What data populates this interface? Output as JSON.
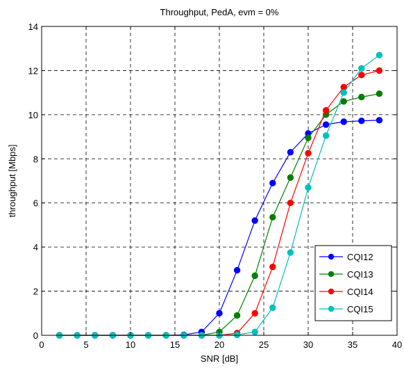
{
  "chart_data": {
    "type": "line",
    "title": "Throughput, PedA, evm = 0%",
    "xlabel": "SNR [dB]",
    "ylabel": "throughput [Mbps]",
    "xlim": [
      0,
      40
    ],
    "ylim": [
      0,
      14
    ],
    "xticks": [
      0,
      5,
      10,
      15,
      20,
      25,
      30,
      35,
      40
    ],
    "yticks": [
      0,
      2,
      4,
      6,
      8,
      10,
      12,
      14
    ],
    "grid": true,
    "legend_position": "bottom-right",
    "x": [
      2,
      4,
      6,
      8,
      10,
      12,
      14,
      16,
      18,
      20,
      22,
      24,
      26,
      28,
      30,
      32,
      34,
      36,
      38
    ],
    "series": [
      {
        "name": "CQI12",
        "color": "#0000ff",
        "values": [
          0,
          0,
          0,
          0,
          0,
          0,
          0,
          0.02,
          0.15,
          1.0,
          2.95,
          5.2,
          6.9,
          8.3,
          9.15,
          9.55,
          9.68,
          9.72,
          9.75
        ]
      },
      {
        "name": "CQI13",
        "color": "#008000",
        "values": [
          0,
          0,
          0,
          0,
          0,
          0,
          0,
          0,
          0,
          0.15,
          0.9,
          2.7,
          5.35,
          7.15,
          8.95,
          10.0,
          10.6,
          10.8,
          10.95
        ]
      },
      {
        "name": "CQI14",
        "color": "#ff0000",
        "values": [
          0,
          0,
          0,
          0,
          0,
          0,
          0,
          0,
          0,
          0,
          0.1,
          1.0,
          3.1,
          6.0,
          8.25,
          10.2,
          11.25,
          11.8,
          12.0
        ]
      },
      {
        "name": "CQI15",
        "color": "#00bfbf",
        "values": [
          0,
          0,
          0,
          0,
          0,
          0,
          0,
          0,
          0,
          0,
          0.02,
          0.15,
          1.25,
          3.75,
          6.7,
          9.05,
          11.0,
          12.1,
          12.7
        ]
      }
    ]
  }
}
